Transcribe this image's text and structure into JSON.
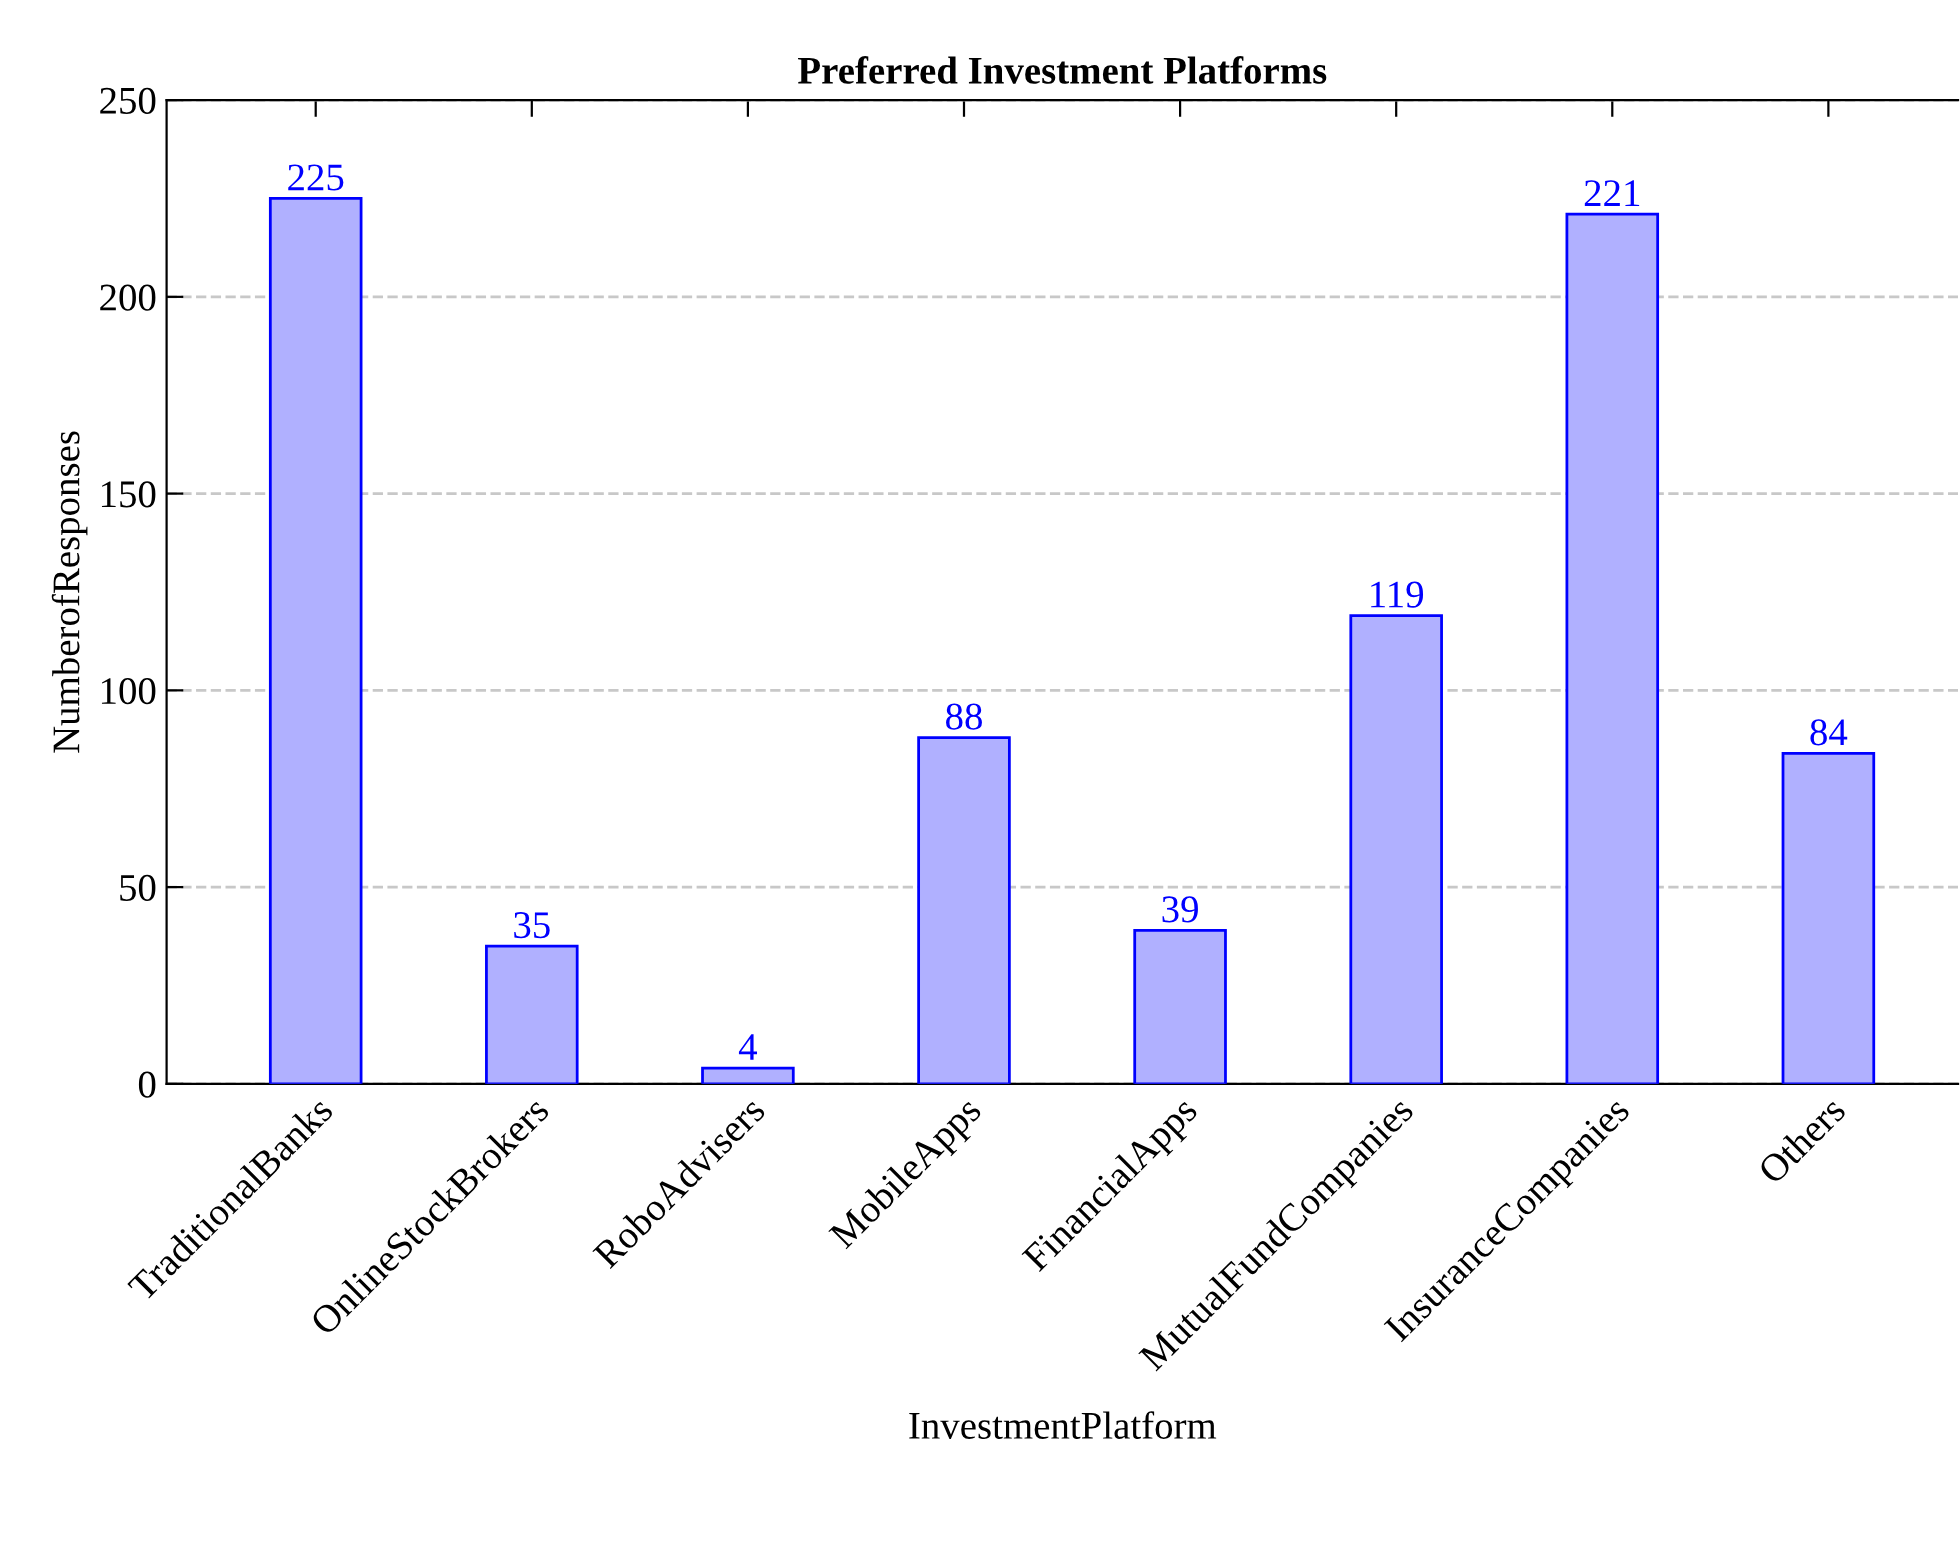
{
  "chart_data": {
    "type": "bar",
    "title": "Preferred Investment Platforms",
    "xlabel": "InvestmentPlatform",
    "ylabel": "NumberofResponses",
    "categories": [
      "TraditionalBanks",
      "OnlineStockBrokers",
      "RoboAdvisers",
      "MobileApps",
      "FinancialApps",
      "MutualFundCompanies",
      "InsuranceCompanies",
      "Others"
    ],
    "values": [
      225,
      35,
      4,
      88,
      39,
      119,
      221,
      84
    ],
    "color": "#b0b0ff",
    "ylim": [
      0,
      250
    ],
    "yticks": [
      0,
      50,
      100,
      150,
      200,
      250
    ],
    "grid": "y",
    "data_labels": true
  }
}
